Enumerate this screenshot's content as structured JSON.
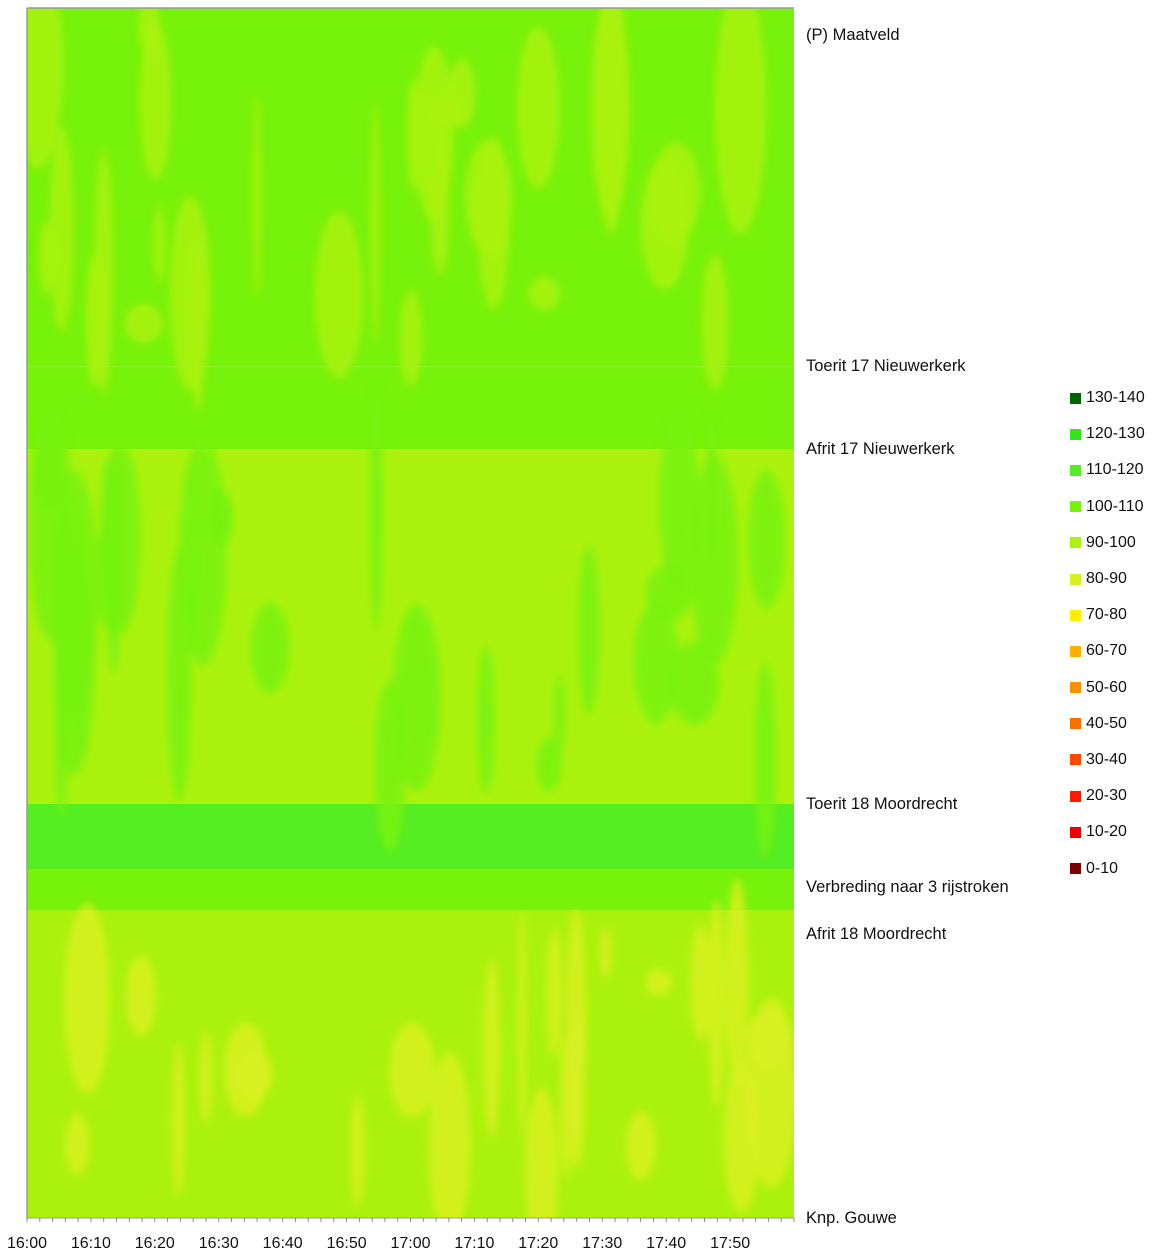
{
  "chart_data": {
    "type": "heatmap",
    "title": "",
    "xlabel": "",
    "ylabel": "",
    "x_tick_labels": [
      "16:00",
      "16:10",
      "16:20",
      "16:30",
      "16:40",
      "16:50",
      "17:00",
      "17:10",
      "17:20",
      "17:30",
      "17:40",
      "17:50"
    ],
    "x_range": [
      "16:00",
      "18:00"
    ],
    "x_minor_tick_interval_minutes": 2,
    "locations": [
      {
        "label": "(P) Maatveld",
        "position": 0.0
      },
      {
        "label": "Toerit 17 Nieuwerkerk",
        "position": 0.28
      },
      {
        "label": "Afrit 17 Nieuwerkerk",
        "position": 0.35
      },
      {
        "label": "Toerit 18 Moordrecht",
        "position": 0.65
      },
      {
        "label": "Verbreding naar 3 rijstroken",
        "position": 0.72
      },
      {
        "label": "Afrit 18 Moordrecht",
        "position": 0.76
      },
      {
        "label": "Knp. Gouwe",
        "position": 1.0
      }
    ],
    "legend": [
      {
        "label": "130-140",
        "color": "#006400"
      },
      {
        "label": "120-130",
        "color": "#33e61a"
      },
      {
        "label": "110-120",
        "color": "#55ee22"
      },
      {
        "label": "100-110",
        "color": "#77f20a"
      },
      {
        "label": "90-100",
        "color": "#aaf20e"
      },
      {
        "label": "80-90",
        "color": "#d8f020"
      },
      {
        "label": "70-80",
        "color": "#ffee00"
      },
      {
        "label": "60-70",
        "color": "#ffb000"
      },
      {
        "label": "50-60",
        "color": "#ff9000"
      },
      {
        "label": "40-50",
        "color": "#ff7000"
      },
      {
        "label": "30-40",
        "color": "#ff4a00"
      },
      {
        "label": "20-30",
        "color": "#ff1a00"
      },
      {
        "label": "10-20",
        "color": "#ee0000"
      },
      {
        "label": "0-10",
        "color": "#7a0000"
      }
    ],
    "bands": [
      {
        "from": 0.0,
        "to": 0.28,
        "speed_class": "100-110",
        "patch_class": "90-100"
      },
      {
        "from": 0.28,
        "to": 0.35,
        "speed_class": "100-110"
      },
      {
        "from": 0.35,
        "to": 0.65,
        "speed_class": "90-100",
        "patch_class": "100-110"
      },
      {
        "from": 0.65,
        "to": 0.705,
        "speed_class": "110-120"
      },
      {
        "from": 0.705,
        "to": 0.74,
        "speed_class": "100-110"
      },
      {
        "from": 0.74,
        "to": 1.0,
        "speed_class": "90-100",
        "patch_class": "80-90"
      }
    ],
    "grid": false,
    "legend_position": "right"
  }
}
